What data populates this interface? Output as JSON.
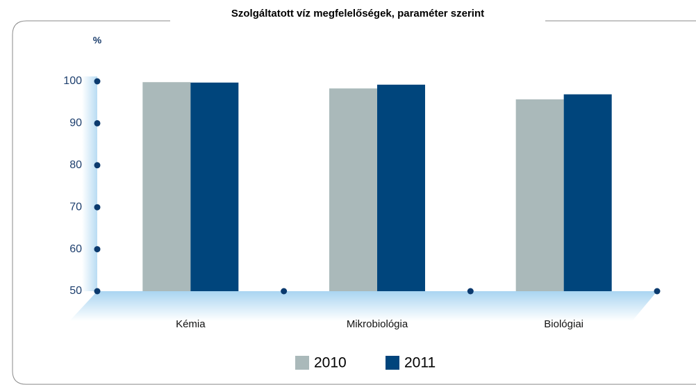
{
  "chart_data": {
    "type": "bar",
    "title": "Szolgáltatott víz megfelelőségek, paraméter szerint",
    "y_label": "%",
    "categories": [
      "Kémia",
      "Mikrobiológia",
      "Biológiai"
    ],
    "series": [
      {
        "name": "2010",
        "color": "#aab9ba",
        "values": [
          99.8,
          98.3,
          95.7
        ]
      },
      {
        "name": "2011",
        "color": "#00457c",
        "values": [
          99.7,
          99.2,
          96.9
        ]
      }
    ],
    "ylim": [
      50,
      100
    ],
    "yticks": [
      50,
      60,
      70,
      80,
      90,
      100
    ]
  }
}
